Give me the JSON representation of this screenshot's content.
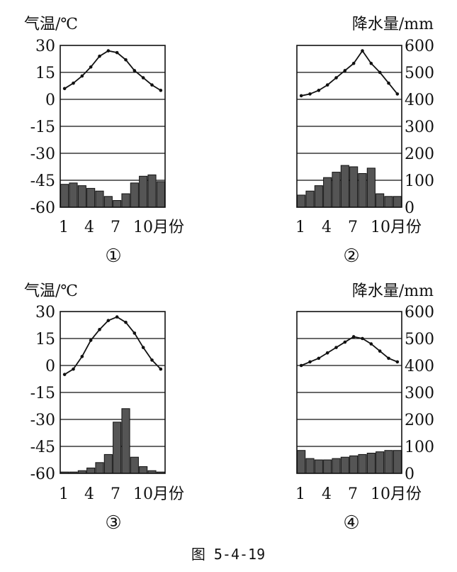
{
  "figure_caption": "图 5-4-19",
  "left_axis_title": "气温/℃",
  "right_axis_title": "降水量/mm",
  "temperature_ticks": [
    "30",
    "15",
    "0",
    "-15",
    "-30",
    "-45",
    "-60"
  ],
  "precipitation_ticks": [
    "600",
    "500",
    "400",
    "300",
    "200",
    "100",
    "0"
  ],
  "x_tick_labels": [
    "1",
    "4",
    "7",
    "10月份"
  ],
  "chart_data": [
    {
      "type": "bar",
      "label": "①",
      "categories": [
        "1",
        "2",
        "3",
        "4",
        "5",
        "6",
        "7",
        "8",
        "9",
        "10",
        "11",
        "12"
      ],
      "series": [
        {
          "kind": "line",
          "unit": "℃",
          "values": [
            6,
            9,
            13,
            18,
            24,
            27,
            26,
            22,
            16,
            12,
            8,
            5
          ]
        },
        {
          "kind": "bar",
          "unit": "mm",
          "values": [
            85,
            90,
            80,
            70,
            60,
            40,
            25,
            50,
            90,
            115,
            120,
            95
          ]
        }
      ],
      "ylim_temp": [
        -60,
        30
      ],
      "ylim_precip": [
        0,
        600
      ]
    },
    {
      "type": "bar",
      "label": "②",
      "categories": [
        "1",
        "2",
        "3",
        "4",
        "5",
        "6",
        "7",
        "8",
        "9",
        "10",
        "11",
        "12"
      ],
      "series": [
        {
          "kind": "line",
          "unit": "℃",
          "values": [
            2,
            3,
            5,
            8,
            12,
            16,
            20,
            27,
            20,
            15,
            9,
            3
          ]
        },
        {
          "kind": "bar",
          "unit": "mm",
          "values": [
            45,
            60,
            80,
            110,
            130,
            155,
            150,
            125,
            145,
            50,
            40,
            40
          ]
        }
      ],
      "ylim_temp": [
        -60,
        30
      ],
      "ylim_precip": [
        0,
        600
      ]
    },
    {
      "type": "bar",
      "label": "③",
      "categories": [
        "1",
        "2",
        "3",
        "4",
        "5",
        "6",
        "7",
        "8",
        "9",
        "10",
        "11",
        "12"
      ],
      "series": [
        {
          "kind": "line",
          "unit": "℃",
          "values": [
            -5,
            -2,
            5,
            14,
            20,
            25,
            27,
            24,
            18,
            10,
            3,
            -2
          ]
        },
        {
          "kind": "bar",
          "unit": "mm",
          "values": [
            5,
            5,
            10,
            20,
            40,
            70,
            190,
            240,
            60,
            25,
            10,
            5
          ]
        }
      ],
      "ylim_temp": [
        -60,
        30
      ],
      "ylim_precip": [
        0,
        600
      ]
    },
    {
      "type": "bar",
      "label": "④",
      "categories": [
        "1",
        "2",
        "3",
        "4",
        "5",
        "6",
        "7",
        "8",
        "9",
        "10",
        "11",
        "12"
      ],
      "series": [
        {
          "kind": "line",
          "unit": "℃",
          "values": [
            0,
            2,
            4,
            7,
            10,
            13,
            16,
            15,
            12,
            8,
            4,
            2
          ]
        },
        {
          "kind": "bar",
          "unit": "mm",
          "values": [
            85,
            55,
            50,
            50,
            55,
            60,
            65,
            70,
            75,
            80,
            85,
            85
          ]
        }
      ],
      "ylim_temp": [
        -60,
        30
      ],
      "ylim_precip": [
        0,
        600
      ]
    }
  ]
}
